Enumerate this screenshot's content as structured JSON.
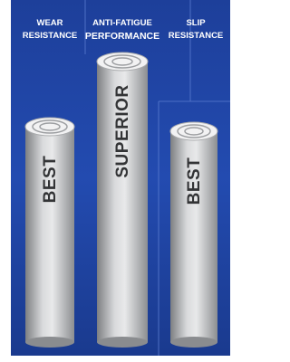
{
  "columns": [
    {
      "header": [
        "WEAR",
        "RESISTANCE"
      ],
      "label": "BEST"
    },
    {
      "header": [
        "ANTI-FATIGUE",
        "PERFORMANCE"
      ],
      "label": "SUPERIOR"
    },
    {
      "header": [
        "SLIP",
        "RESISTANCE"
      ],
      "label": "BEST"
    }
  ]
}
